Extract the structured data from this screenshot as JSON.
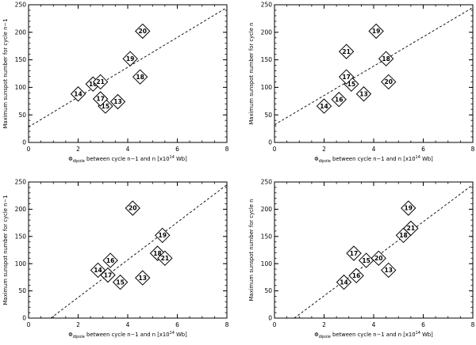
{
  "chart_data": [
    {
      "type": "scatter",
      "xlabel": "Φdipole between cycle n−1 and n [x10¹⁴ Wb]",
      "xlabel_symbol": "Φ",
      "xlabel_sub": "dipole",
      "xlabel_rest": " between cycle n−1 and n [x10",
      "xlabel_exp": "14",
      "xlabel_unit": " Wb]",
      "ylabel": "Maximum sunspot number for cycle n−1",
      "xlim": [
        0,
        8
      ],
      "ylim": [
        0,
        250
      ],
      "xticks": [
        "0",
        "2",
        "4",
        "6",
        "8"
      ],
      "yticks": [
        "0",
        "50",
        "100",
        "150",
        "200",
        "250"
      ],
      "points": [
        {
          "label": "14",
          "x": 2.0,
          "y": 88
        },
        {
          "label": "15",
          "x": 3.1,
          "y": 66
        },
        {
          "label": "16",
          "x": 2.6,
          "y": 106
        },
        {
          "label": "17",
          "x": 2.9,
          "y": 79
        },
        {
          "label": "21",
          "x": 2.9,
          "y": 110
        },
        {
          "label": "13",
          "x": 3.6,
          "y": 74
        },
        {
          "label": "18",
          "x": 4.5,
          "y": 119
        },
        {
          "label": "19",
          "x": 4.1,
          "y": 152
        },
        {
          "label": "20",
          "x": 4.6,
          "y": 202
        }
      ],
      "fit_line": {
        "x": [
          0,
          8
        ],
        "y": [
          28,
          245
        ]
      },
      "grid": false
    },
    {
      "type": "scatter",
      "xlabel": "Φdipole between cycle n−1 and n [x10¹⁴ Wb]",
      "xlabel_symbol": "Φ",
      "xlabel_sub": "dipole",
      "xlabel_rest": " between cycle n−1 and n [x10",
      "xlabel_exp": "14",
      "xlabel_unit": " Wb]",
      "ylabel": "Maximum sunspot number for cycle n",
      "xlim": [
        0,
        8
      ],
      "ylim": [
        0,
        250
      ],
      "xticks": [
        "0",
        "2",
        "4",
        "6",
        "8"
      ],
      "yticks": [
        "0",
        "50",
        "100",
        "150",
        "200",
        "250"
      ],
      "points": [
        {
          "label": "14",
          "x": 2.0,
          "y": 66
        },
        {
          "label": "16",
          "x": 2.6,
          "y": 78
        },
        {
          "label": "13",
          "x": 3.6,
          "y": 88
        },
        {
          "label": "15",
          "x": 3.1,
          "y": 106
        },
        {
          "label": "17",
          "x": 2.9,
          "y": 119
        },
        {
          "label": "20",
          "x": 4.6,
          "y": 110
        },
        {
          "label": "18",
          "x": 4.5,
          "y": 152
        },
        {
          "label": "21",
          "x": 2.9,
          "y": 165
        },
        {
          "label": "19",
          "x": 4.1,
          "y": 202
        }
      ],
      "fit_line": {
        "x": [
          0,
          8
        ],
        "y": [
          32,
          245
        ]
      },
      "grid": false
    },
    {
      "type": "scatter",
      "xlabel": "Φdipole between cycle n−1 and n [x10¹⁴ Wb]",
      "xlabel_symbol": "Φ",
      "xlabel_sub": "dipole",
      "xlabel_rest": " between cycle n−1 and n [x10",
      "xlabel_exp": "14",
      "xlabel_unit": " Wb]",
      "ylabel": "Maximum sunspot number for cycle n−1",
      "xlim": [
        0,
        8
      ],
      "ylim": [
        0,
        250
      ],
      "xticks": [
        "0",
        "2",
        "4",
        "6",
        "8"
      ],
      "yticks": [
        "0",
        "50",
        "100",
        "150",
        "200",
        "250"
      ],
      "points": [
        {
          "label": "14",
          "x": 2.8,
          "y": 88
        },
        {
          "label": "17",
          "x": 3.2,
          "y": 79
        },
        {
          "label": "16",
          "x": 3.3,
          "y": 106
        },
        {
          "label": "15",
          "x": 3.7,
          "y": 66
        },
        {
          "label": "13",
          "x": 4.6,
          "y": 74
        },
        {
          "label": "20",
          "x": 4.2,
          "y": 202
        },
        {
          "label": "19",
          "x": 5.4,
          "y": 152
        },
        {
          "label": "18",
          "x": 5.2,
          "y": 119
        },
        {
          "label": "21",
          "x": 5.5,
          "y": 110
        }
      ],
      "fit_line": {
        "x": [
          0.9,
          8
        ],
        "y": [
          0,
          245
        ]
      },
      "grid": false
    },
    {
      "type": "scatter",
      "xlabel": "Φdipole between cycle n−1 and n [x10¹⁴ Wb]",
      "xlabel_symbol": "Φ",
      "xlabel_sub": "dipole",
      "xlabel_rest": " between cycle n−1 and n [x10",
      "xlabel_exp": "14",
      "xlabel_unit": " Wb]",
      "ylabel": "Maximum sunspot number for cycle n",
      "xlim": [
        0,
        8
      ],
      "ylim": [
        0,
        250
      ],
      "xticks": [
        "0",
        "2",
        "4",
        "6",
        "8"
      ],
      "yticks": [
        "0",
        "50",
        "100",
        "150",
        "200",
        "250"
      ],
      "points": [
        {
          "label": "14",
          "x": 2.8,
          "y": 66
        },
        {
          "label": "16",
          "x": 3.3,
          "y": 78
        },
        {
          "label": "17",
          "x": 3.2,
          "y": 119
        },
        {
          "label": "15",
          "x": 3.7,
          "y": 106
        },
        {
          "label": "20",
          "x": 4.2,
          "y": 110
        },
        {
          "label": "13",
          "x": 4.6,
          "y": 88
        },
        {
          "label": "18",
          "x": 5.2,
          "y": 152
        },
        {
          "label": "21",
          "x": 5.5,
          "y": 165
        },
        {
          "label": "19",
          "x": 5.4,
          "y": 202
        }
      ],
      "fit_line": {
        "x": [
          0.8,
          8
        ],
        "y": [
          0,
          245
        ]
      },
      "grid": false
    }
  ]
}
